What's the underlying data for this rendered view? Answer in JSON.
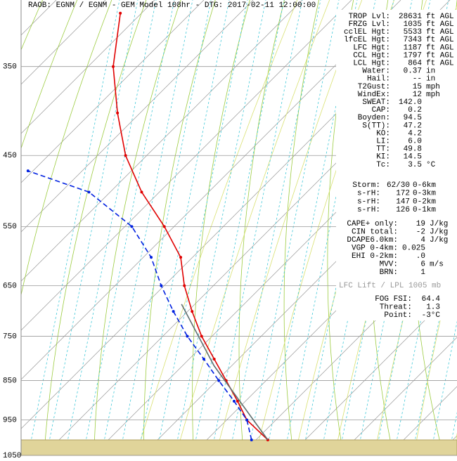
{
  "chart_data": {
    "type": "skewt",
    "title": "RAOB:  EGNM / EGNM - GEM Model 108hr - DTG: 2017-02-11 12:00:00",
    "ylim": [
      290,
      1050
    ],
    "ylog": true,
    "yticks": [
      350,
      450,
      550,
      650,
      750,
      850,
      950,
      1050
    ],
    "series": [
      {
        "color": "#e00000",
        "style": "solid",
        "pressures": [
          1005,
          950,
          901,
          850,
          800,
          750,
          699,
          650,
          600,
          550,
          499,
          450,
          399,
          350,
          301
        ],
        "values": [
          2.4,
          -5.9,
          -11.6,
          -18.1,
          -24.9,
          -32.1,
          -39.1,
          -45.9,
          -52.4,
          -62.0,
          -73.6,
          -84.3,
          -94.6,
          -104.9,
          -114.3
        ]
      },
      {
        "color": "#0020e0",
        "style": "dashed",
        "pressures": [
          1005,
          950,
          901,
          850,
          800,
          750,
          699,
          650,
          600,
          550,
          499,
          470
        ],
        "values": [
          -0.9,
          -5.9,
          -12.3,
          -19.6,
          -27.0,
          -35.0,
          -42.9,
          -50.6,
          -58.4,
          -68.6,
          -84.3,
          -101.0
        ]
      },
      {
        "color": "#607070",
        "style": "solid",
        "pressures": [
          1005,
          815,
          685
        ],
        "values": [
          2.4,
          -23.6,
          -42.7
        ]
      }
    ]
  },
  "panel": {
    "groups": [
      [
        {
          "label": "TROP Lvl:",
          "value": "28631",
          "unit": "ft AGL"
        },
        {
          "label": "FRZG Lvl:",
          "value": "1035",
          "unit": "ft AGL"
        },
        {
          "label": "cclEL Hgt:",
          "value": "5533",
          "unit": "ft AGL"
        },
        {
          "label": "lfcEL Hgt:",
          "value": "7343",
          "unit": "ft AGL"
        },
        {
          "label": "LFC Hgt:",
          "value": "1187",
          "unit": "ft AGL"
        },
        {
          "label": "CCL Hgt:",
          "value": "1797",
          "unit": "ft AGL"
        },
        {
          "label": "LCL Hgt:",
          "value": "864",
          "unit": "ft AGL"
        },
        {
          "label": "Water:",
          "value": "0.37",
          "unit": "in"
        },
        {
          "label": "Hail:",
          "value": "--",
          "unit": "in"
        },
        {
          "label": "T2Gust:",
          "value": "15",
          "unit": "mph"
        },
        {
          "label": "WindEx:",
          "value": "12",
          "unit": "mph"
        },
        {
          "label": "SWEAT:",
          "value": "142.0"
        },
        {
          "label": "CAP:",
          "value": "0.2"
        },
        {
          "label": "Boyden:",
          "value": "94.5"
        },
        {
          "label": "S(TT):",
          "value": "47.2"
        },
        {
          "label": "KO:",
          "value": "4.2"
        },
        {
          "label": "LI:",
          "value": "6.0"
        },
        {
          "label": "TT:",
          "value": "49.8"
        },
        {
          "label": "KI:",
          "value": "14.5"
        },
        {
          "label": "Tc:",
          "value": "3.5",
          "unit": "°C"
        }
      ],
      [
        {
          "label": "Storm:",
          "value": "62/30",
          "unit": "0-6km"
        },
        {
          "label": "s-rH:",
          "value": "172",
          "unit": "0-3km"
        },
        {
          "label": "s-rH:",
          "value": "147",
          "unit": "0-2km"
        },
        {
          "label": "s-rH:",
          "value": "126",
          "unit": "0-1km"
        }
      ],
      [
        {
          "label": "CAPE+ only:",
          "value": "19",
          "unit": "J/kg"
        },
        {
          "label": "CIN total:",
          "value": "-2",
          "unit": "J/kg"
        },
        {
          "label": "DCAPE6.0km:",
          "value": "4",
          "unit": "J/kg"
        },
        {
          "label": "VGP 0-4km:",
          "value": "0.025"
        },
        {
          "label": "EHI 0-2km:",
          "value": ".0"
        },
        {
          "label": "MVV:",
          "value": "6",
          "unit": "m/s"
        },
        {
          "label": "BRN:",
          "value": "1"
        }
      ],
      [
        {
          "label": "FOG FSI:",
          "value": "64.4"
        },
        {
          "label": "Threat:",
          "value": "1.3"
        },
        {
          "label": "Point:",
          "value": "-3°C"
        }
      ]
    ],
    "lift_note": "LFC Lift / LPL 1005 mb"
  }
}
